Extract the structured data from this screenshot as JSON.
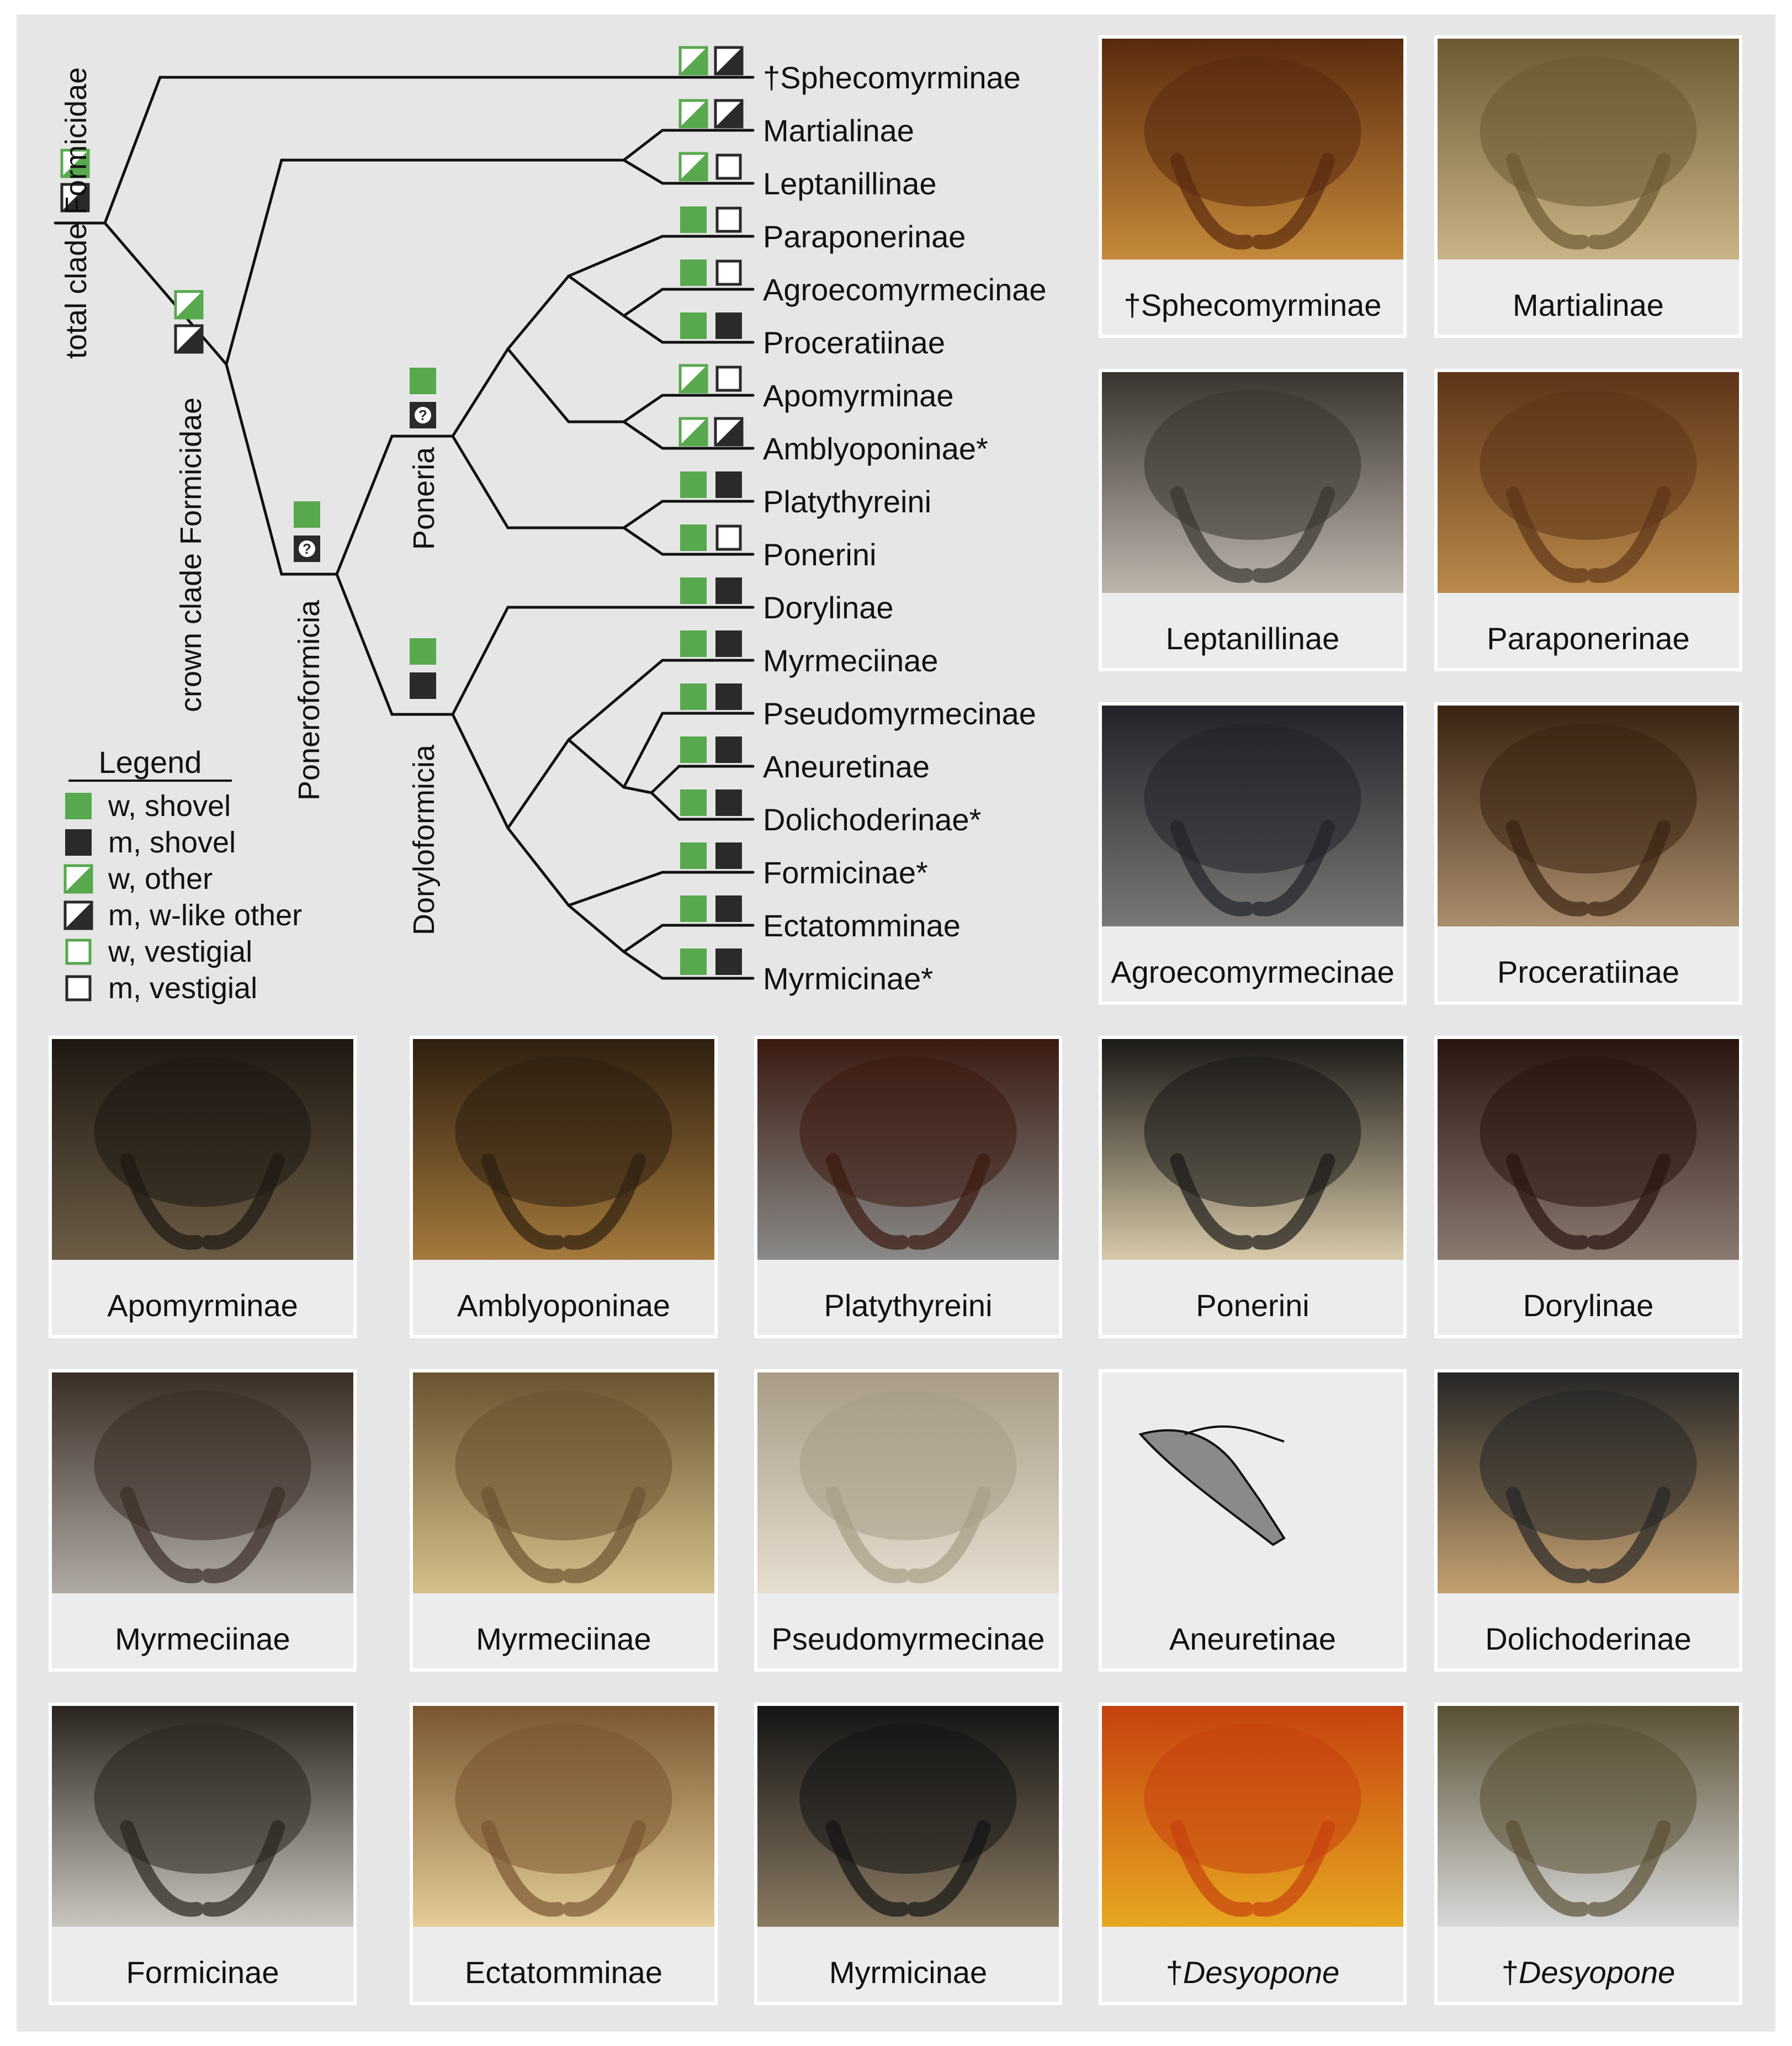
{
  "colors": {
    "background": "#e6e6e6",
    "worker_green": "#58a84e",
    "male_dark": "#2a2a2a",
    "caption_band": "#ececec",
    "tile_border": "#ffffff"
  },
  "clades": {
    "total": "total clade Formicidae",
    "crown": "crown clade Formicidae",
    "poneroformicia": "Poneroformicia",
    "poneria": "Poneria",
    "doryloformicia": "Doryloformicia"
  },
  "legend": {
    "title": "Legend",
    "items": [
      {
        "symbol": "green-solid",
        "label": "w, shovel"
      },
      {
        "symbol": "dark-solid",
        "label": "m, shovel"
      },
      {
        "symbol": "green-diag",
        "label": "w, other"
      },
      {
        "symbol": "dark-diag",
        "label": "m, w-like other"
      },
      {
        "symbol": "green-outline",
        "label": "w, vestigial"
      },
      {
        "symbol": "dark-outline",
        "label": "m, vestigial"
      }
    ]
  },
  "taxa": [
    {
      "name": "†Sphecomyrminae",
      "w": "green-diag",
      "m": "dark-diag"
    },
    {
      "name": "Martialinae",
      "w": "green-diag",
      "m": "dark-diag"
    },
    {
      "name": "Leptanillinae",
      "w": "green-diag",
      "m": "dark-outline"
    },
    {
      "name": "Paraponerinae",
      "w": "green-solid",
      "m": "dark-outline"
    },
    {
      "name": "Agroecomyrmecinae",
      "w": "green-solid",
      "m": "dark-outline"
    },
    {
      "name": "Proceratiinae",
      "w": "green-solid",
      "m": "dark-solid"
    },
    {
      "name": "Apomyrminae",
      "w": "green-diag",
      "m": "dark-outline"
    },
    {
      "name": "Amblyoponinae*",
      "w": "green-diag",
      "m": "dark-diag"
    },
    {
      "name": "Platythyreini",
      "w": "green-solid",
      "m": "dark-solid"
    },
    {
      "name": "Ponerini",
      "w": "green-solid",
      "m": "dark-outline"
    },
    {
      "name": "Dorylinae",
      "w": "green-solid",
      "m": "dark-solid"
    },
    {
      "name": "Myrmeciinae",
      "w": "green-solid",
      "m": "dark-solid"
    },
    {
      "name": "Pseudomyrmecinae",
      "w": "green-solid",
      "m": "dark-solid"
    },
    {
      "name": "Aneuretinae",
      "w": "green-solid",
      "m": "dark-solid"
    },
    {
      "name": "Dolichoderinae*",
      "w": "green-solid",
      "m": "dark-solid"
    },
    {
      "name": "Formicinae*",
      "w": "green-solid",
      "m": "dark-solid"
    },
    {
      "name": "Ectatomminae",
      "w": "green-solid",
      "m": "dark-solid"
    },
    {
      "name": "Myrmicinae*",
      "w": "green-solid",
      "m": "dark-solid"
    }
  ],
  "node_states": {
    "root": {
      "w": "green-diag",
      "m": "dark-diag"
    },
    "crown": {
      "w": "green-diag",
      "m": "dark-diag"
    },
    "poneroformicia": {
      "w": "green-solid",
      "m": "dark-question"
    },
    "poneria": {
      "w": "green-solid",
      "m": "dark-question"
    },
    "doryloformicia": {
      "w": "green-solid",
      "m": "dark-solid"
    }
  },
  "question_glyph": "?",
  "photos": [
    {
      "caption": "†Sphecomyrminae",
      "tone": [
        "#5a2a0e",
        "#c58a3a"
      ]
    },
    {
      "caption": "Martialinae",
      "tone": [
        "#6e5a32",
        "#c8b486"
      ]
    },
    {
      "caption": "Leptanillinae",
      "tone": [
        "#3a3530",
        "#bdb6ad"
      ]
    },
    {
      "caption": "Paraponerinae",
      "tone": [
        "#5e3418",
        "#b98a4a"
      ]
    },
    {
      "caption": "Agroecomyrmecinae",
      "tone": [
        "#22232a",
        "#7a7876"
      ]
    },
    {
      "caption": "Proceratiinae",
      "tone": [
        "#3a2412",
        "#a98d6c"
      ]
    },
    {
      "caption": "Apomyrminae",
      "tone": [
        "#1e1812",
        "#6d5d46"
      ]
    },
    {
      "caption": "Amblyoponinae",
      "tone": [
        "#2e1f10",
        "#a57a3c"
      ]
    },
    {
      "caption": "Platythyreini",
      "tone": [
        "#3a1a10",
        "#8a8a88"
      ]
    },
    {
      "caption": "Ponerini",
      "tone": [
        "#1c1a18",
        "#d7c9a8"
      ]
    },
    {
      "caption": "Dorylinae",
      "tone": [
        "#2a1410",
        "#8a7a70"
      ]
    },
    {
      "caption": "Myrmeciinae",
      "tone": [
        "#3a2e26",
        "#b0aaa4"
      ]
    },
    {
      "caption": "Myrmeciinae",
      "tone": [
        "#6a5430",
        "#d4c08c"
      ]
    },
    {
      "caption": "Pseudomyrmecinae",
      "tone": [
        "#a89c86",
        "#e6ded0"
      ]
    },
    {
      "caption": "Aneuretinae",
      "tone": [
        "#e6e6e6",
        "#e6e6e6"
      ]
    },
    {
      "caption": "Dolichoderinae",
      "tone": [
        "#262626",
        "#c4a070"
      ]
    },
    {
      "caption": "Formicinae",
      "tone": [
        "#2a241e",
        "#c9c6c0"
      ]
    },
    {
      "caption": "Ectatomminae",
      "tone": [
        "#7a5630",
        "#e4cc98"
      ]
    },
    {
      "caption": "Myrmicinae",
      "tone": [
        "#141414",
        "#8a7a62"
      ]
    },
    {
      "caption_prefix": "†",
      "caption_italic": "Desyopone",
      "tone": [
        "#c6420e",
        "#e6a820"
      ]
    },
    {
      "caption_prefix": "†",
      "caption_italic": "Desyopone",
      "tone": [
        "#5a5034",
        "#d8d8d8"
      ]
    }
  ]
}
